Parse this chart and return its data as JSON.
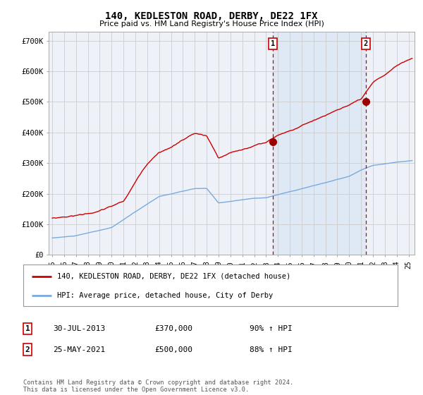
{
  "title": "140, KEDLESTON ROAD, DERBY, DE22 1FX",
  "subtitle": "Price paid vs. HM Land Registry's House Price Index (HPI)",
  "background_color": "#ffffff",
  "plot_bg_color": "#eef2f8",
  "grid_color": "#cccccc",
  "red_line_color": "#cc0000",
  "blue_line_color": "#7aaadd",
  "shade_color": "#dce8f5",
  "point1_date_num": 2013.58,
  "point1_value": 370000,
  "point2_date_num": 2021.4,
  "point2_value": 500000,
  "vline_color": "#cc0000",
  "legend1_label": "140, KEDLESTON ROAD, DERBY, DE22 1FX (detached house)",
  "legend2_label": "HPI: Average price, detached house, City of Derby",
  "note1_num": "1",
  "note1_date": "30-JUL-2013",
  "note1_price": "£370,000",
  "note1_hpi": "90% ↑ HPI",
  "note2_num": "2",
  "note2_date": "25-MAY-2021",
  "note2_price": "£500,000",
  "note2_hpi": "88% ↑ HPI",
  "footer": "Contains HM Land Registry data © Crown copyright and database right 2024.\nThis data is licensed under the Open Government Licence v3.0.",
  "ylim": [
    0,
    730000
  ],
  "xlim_start": 1994.7,
  "xlim_end": 2025.5,
  "yticks": [
    0,
    100000,
    200000,
    300000,
    400000,
    500000,
    600000,
    700000
  ],
  "ytick_labels": [
    "£0",
    "£100K",
    "£200K",
    "£300K",
    "£400K",
    "£500K",
    "£600K",
    "£700K"
  ],
  "xticks": [
    1995,
    1996,
    1997,
    1998,
    1999,
    2000,
    2001,
    2002,
    2003,
    2004,
    2005,
    2006,
    2007,
    2008,
    2009,
    2010,
    2011,
    2012,
    2013,
    2014,
    2015,
    2016,
    2017,
    2018,
    2019,
    2020,
    2021,
    2022,
    2023,
    2024,
    2025
  ]
}
